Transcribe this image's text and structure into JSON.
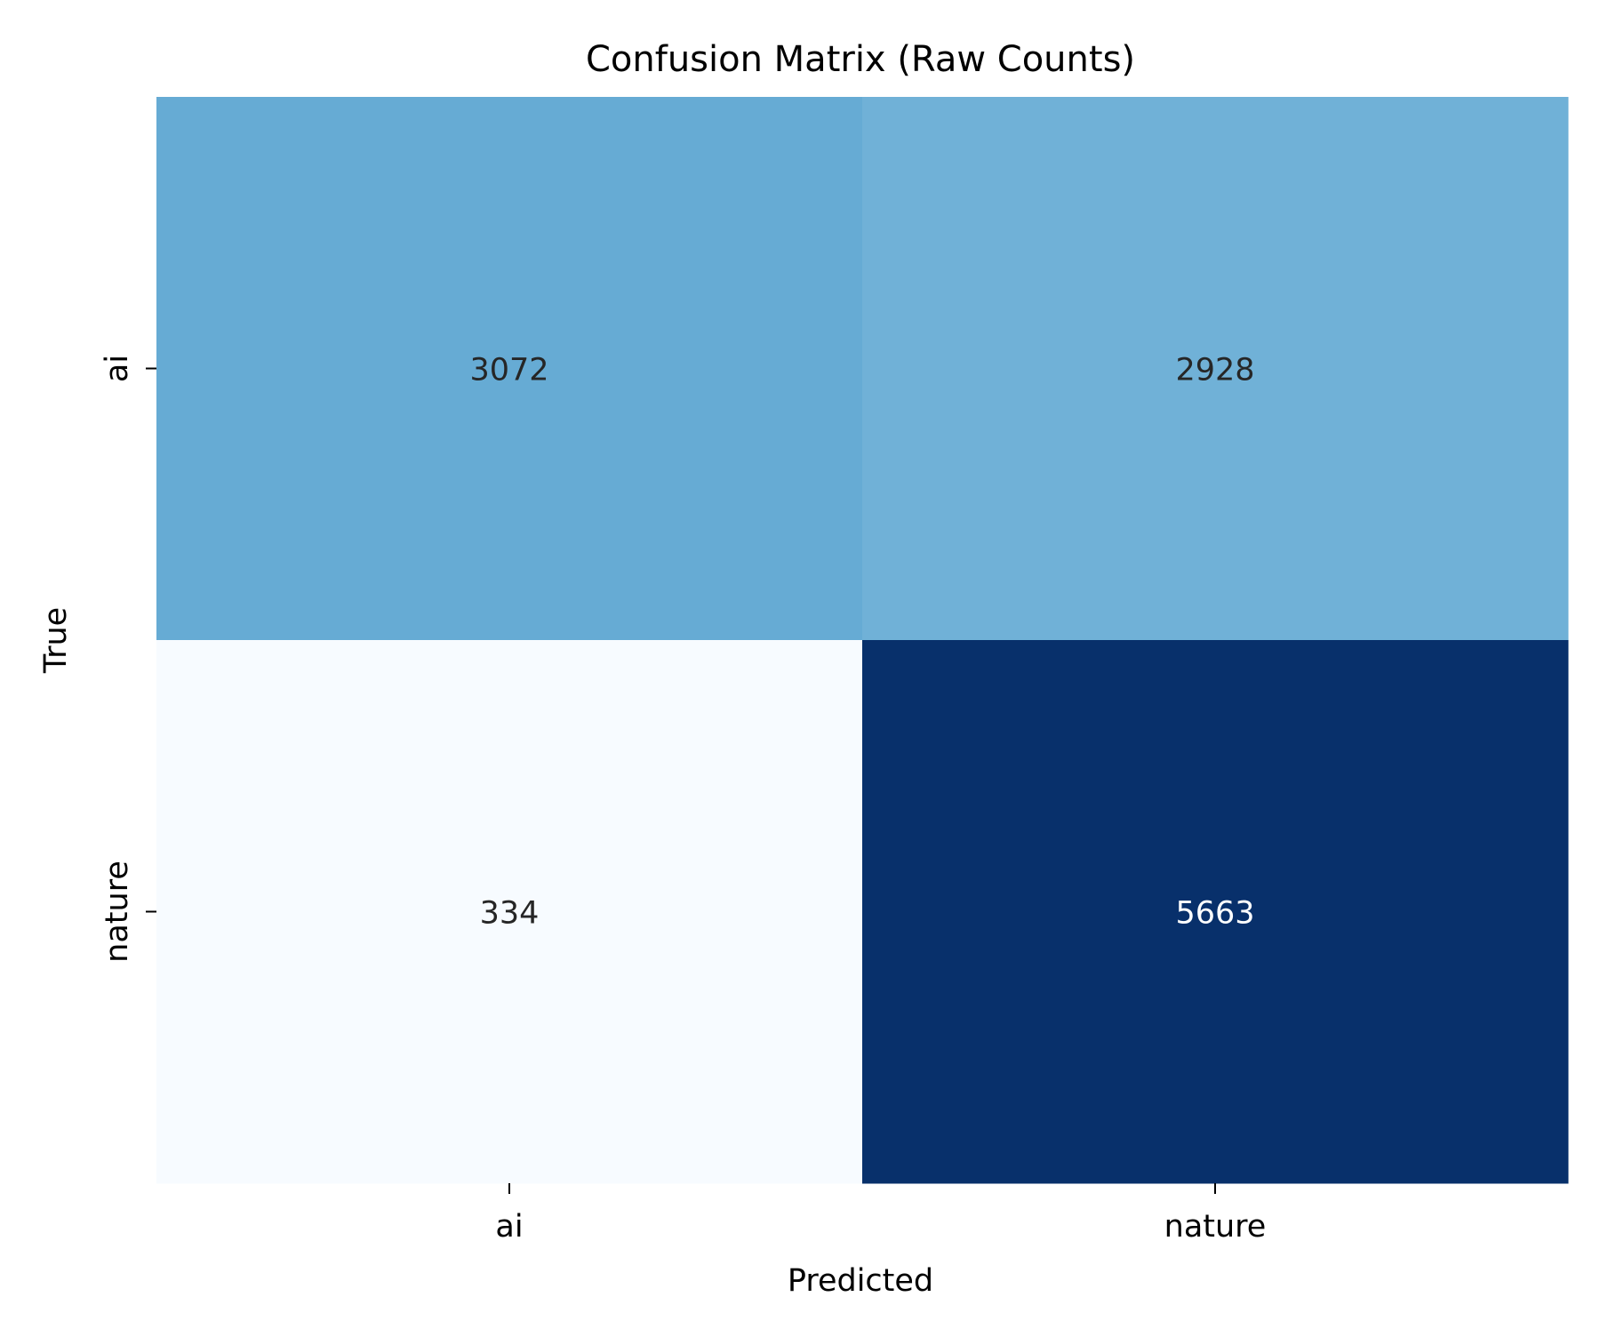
{
  "chart_data": {
    "type": "heatmap",
    "title": "Confusion Matrix (Raw Counts)",
    "xlabel": "Predicted",
    "ylabel": "True",
    "x_categories": [
      "ai",
      "nature"
    ],
    "y_categories": [
      "ai",
      "nature"
    ],
    "values": [
      [
        3072,
        2928
      ],
      [
        334,
        5663
      ]
    ],
    "colormap": "Blues",
    "colors": {
      "low": "#f7fbff",
      "high": "#08306b",
      "text_dark": "#262626",
      "text_light": "#ffffff"
    },
    "colorbar": false
  }
}
